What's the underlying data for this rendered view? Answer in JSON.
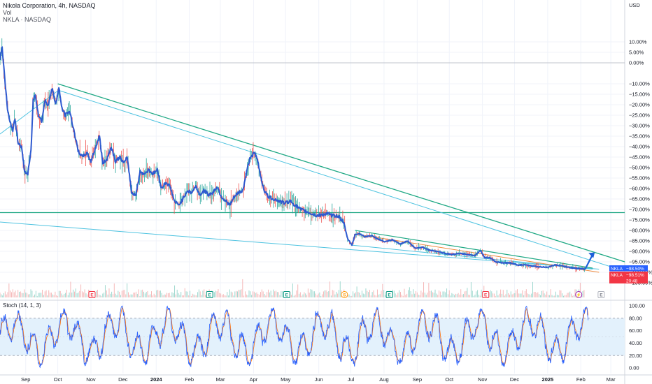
{
  "header": {
    "symbol_line": "Nikola Corporation, 4h, NASDAQ",
    "vol_line": "Vol",
    "compare_line": "NKLA · NASDAQ",
    "currency": "USD"
  },
  "stoch": {
    "label": "Stoch (14, 1, 3)",
    "ticks": [
      "100.00",
      "80.00",
      "60.00",
      "40.00",
      "20.00",
      "0.00"
    ],
    "k_color": "#2962ff",
    "d_color": "#ff6d00"
  },
  "price_tags": {
    "nkla_label": "NKLA",
    "nkla_value": "−98.50%",
    "nkla_color": "#2962ff",
    "last_label": "NKLA",
    "last_value": "−98.51%",
    "last_color": "#f23645",
    "countdown": "20:48"
  },
  "events": [
    {
      "letter": "E",
      "kind": "earnings-red",
      "date": "2023-11-02"
    },
    {
      "letter": "E",
      "kind": "earnings-green",
      "date": "2024-02-20"
    },
    {
      "letter": "E",
      "kind": "earnings-green",
      "date": "2024-05-02"
    },
    {
      "letter": "S",
      "kind": "split",
      "date": "2024-06-25"
    },
    {
      "letter": "E",
      "kind": "earnings-green",
      "date": "2024-08-06"
    },
    {
      "letter": "E",
      "kind": "earnings-red",
      "date": "2024-11-04"
    },
    {
      "letter": "⚡",
      "kind": "news",
      "date": "2025-01-30"
    },
    {
      "letter": "E",
      "kind": "earnings-future",
      "date": "2025-02-20"
    }
  ],
  "colors": {
    "candle_line": "#2e5ad0",
    "trend_dark": "#1fa884",
    "trend_light": "#4fc3e0",
    "wedge_orange": "#ef8a3e",
    "arrow": "#1e5fd9",
    "stoch_band": "#e3f1fc"
  },
  "chart_data": {
    "type": "line",
    "title": "Nikola Corporation, 4h, NASDAQ",
    "ylabel": "USD",
    "y_unit": "% change",
    "ylim": [
      -108,
      18
    ],
    "y_ticks": [
      10,
      5,
      0,
      -10,
      -15,
      -20,
      -25,
      -30,
      -35,
      -40,
      -45,
      -50,
      -55,
      -60,
      -65,
      -70,
      -75,
      -80,
      -85,
      -90,
      -95,
      -100,
      -105
    ],
    "y_tick_labels": [
      "10.00%",
      "5.00%",
      "0.00%",
      "−10.00%",
      "−15.00%",
      "−20.00%",
      "−25.00%",
      "−30.00%",
      "−35.00%",
      "−40.00%",
      "−45.00%",
      "−50.00%",
      "−55.00%",
      "−60.00%",
      "−65.00%",
      "−70.00%",
      "−75.00%",
      "−80.00%",
      "−85.00%",
      "−90.00%",
      "−95.00%",
      "−100.00%",
      "−105.00%"
    ],
    "x_range": [
      "2023-08-08",
      "2025-03-14"
    ],
    "x_ticks": [
      {
        "date": "2023-09-01",
        "label": "Sep",
        "bold": false
      },
      {
        "date": "2023-10-01",
        "label": "Oct",
        "bold": false
      },
      {
        "date": "2023-11-01",
        "label": "Nov",
        "bold": false
      },
      {
        "date": "2023-12-01",
        "label": "Dec",
        "bold": false
      },
      {
        "date": "2024-01-01",
        "label": "2024",
        "bold": true
      },
      {
        "date": "2024-02-01",
        "label": "Feb",
        "bold": false
      },
      {
        "date": "2024-03-01",
        "label": "Mar",
        "bold": false
      },
      {
        "date": "2024-04-01",
        "label": "Apr",
        "bold": false
      },
      {
        "date": "2024-05-01",
        "label": "May",
        "bold": false
      },
      {
        "date": "2024-06-01",
        "label": "Jun",
        "bold": false
      },
      {
        "date": "2024-07-01",
        "label": "Jul",
        "bold": false
      },
      {
        "date": "2024-08-01",
        "label": "Aug",
        "bold": false
      },
      {
        "date": "2024-09-01",
        "label": "Sep",
        "bold": false
      },
      {
        "date": "2024-10-01",
        "label": "Oct",
        "bold": false
      },
      {
        "date": "2024-11-01",
        "label": "Nov",
        "bold": false
      },
      {
        "date": "2024-12-01",
        "label": "Dec",
        "bold": false
      },
      {
        "date": "2025-01-01",
        "label": "2025",
        "bold": true
      },
      {
        "date": "2025-02-01",
        "label": "Feb",
        "bold": false
      },
      {
        "date": "2025-03-01",
        "label": "Mar",
        "bold": false
      }
    ],
    "series": [
      {
        "values": [
          [
            "2023-08-08",
            2
          ],
          [
            "2023-08-10",
            8
          ],
          [
            "2023-08-12",
            -5
          ],
          [
            "2023-08-15",
            -22
          ],
          [
            "2023-08-17",
            -28
          ],
          [
            "2023-08-20",
            -32
          ],
          [
            "2023-08-22",
            -27
          ],
          [
            "2023-08-25",
            -38
          ],
          [
            "2023-08-28",
            -40
          ],
          [
            "2023-08-31",
            -52
          ],
          [
            "2023-09-03",
            -53
          ],
          [
            "2023-09-06",
            -42
          ],
          [
            "2023-09-08",
            -18
          ],
          [
            "2023-09-10",
            -15
          ],
          [
            "2023-09-13",
            -25
          ],
          [
            "2023-09-16",
            -28
          ],
          [
            "2023-09-19",
            -18
          ],
          [
            "2023-09-22",
            -20
          ],
          [
            "2023-09-26",
            -12
          ],
          [
            "2023-09-29",
            -20
          ],
          [
            "2023-10-02",
            -12
          ],
          [
            "2023-10-05",
            -22
          ],
          [
            "2023-10-08",
            -25
          ],
          [
            "2023-10-12",
            -23
          ],
          [
            "2023-10-16",
            -32
          ],
          [
            "2023-10-20",
            -42
          ],
          [
            "2023-10-24",
            -45
          ],
          [
            "2023-10-28",
            -43
          ],
          [
            "2023-11-01",
            -47
          ],
          [
            "2023-11-05",
            -41
          ],
          [
            "2023-11-09",
            -35
          ],
          [
            "2023-11-12",
            -48
          ],
          [
            "2023-11-16",
            -46
          ],
          [
            "2023-11-20",
            -40
          ],
          [
            "2023-11-24",
            -47
          ],
          [
            "2023-11-28",
            -45
          ],
          [
            "2023-12-02",
            -48
          ],
          [
            "2023-12-05",
            -45
          ],
          [
            "2023-12-09",
            -62
          ],
          [
            "2023-12-13",
            -63
          ],
          [
            "2023-12-17",
            -52
          ],
          [
            "2023-12-21",
            -53
          ],
          [
            "2023-12-25",
            -51
          ],
          [
            "2023-12-29",
            -53
          ],
          [
            "2024-01-02",
            -51
          ],
          [
            "2024-01-06",
            -60
          ],
          [
            "2024-01-10",
            -57
          ],
          [
            "2024-01-14",
            -59
          ],
          [
            "2024-01-18",
            -66
          ],
          [
            "2024-01-22",
            -68
          ],
          [
            "2024-01-26",
            -65
          ],
          [
            "2024-01-30",
            -61
          ],
          [
            "2024-02-03",
            -62
          ],
          [
            "2024-02-07",
            -59
          ],
          [
            "2024-02-11",
            -63
          ],
          [
            "2024-02-15",
            -61
          ],
          [
            "2024-02-19",
            -63
          ],
          [
            "2024-02-23",
            -62
          ],
          [
            "2024-02-27",
            -59
          ],
          [
            "2024-03-02",
            -64
          ],
          [
            "2024-03-06",
            -66
          ],
          [
            "2024-03-10",
            -68
          ],
          [
            "2024-03-14",
            -64
          ],
          [
            "2024-03-18",
            -62
          ],
          [
            "2024-03-22",
            -61
          ],
          [
            "2024-03-26",
            -51
          ],
          [
            "2024-03-29",
            -45
          ],
          [
            "2024-04-02",
            -43
          ],
          [
            "2024-04-05",
            -47
          ],
          [
            "2024-04-08",
            -55
          ],
          [
            "2024-04-11",
            -61
          ],
          [
            "2024-04-15",
            -64
          ],
          [
            "2024-04-20",
            -65
          ],
          [
            "2024-04-25",
            -66
          ],
          [
            "2024-04-30",
            -67
          ],
          [
            "2024-05-05",
            -66
          ],
          [
            "2024-05-10",
            -68
          ],
          [
            "2024-05-15",
            -70
          ],
          [
            "2024-05-20",
            -71
          ],
          [
            "2024-05-25",
            -72
          ],
          [
            "2024-05-30",
            -73
          ],
          [
            "2024-06-04",
            -72.5
          ],
          [
            "2024-06-09",
            -72
          ],
          [
            "2024-06-14",
            -73
          ],
          [
            "2024-06-19",
            -73
          ],
          [
            "2024-06-24",
            -76
          ],
          [
            "2024-06-28",
            -84
          ],
          [
            "2024-07-02",
            -87
          ],
          [
            "2024-07-05",
            -82
          ],
          [
            "2024-07-09",
            -81.5
          ],
          [
            "2024-07-14",
            -83
          ],
          [
            "2024-07-20",
            -82.5
          ],
          [
            "2024-07-26",
            -84
          ],
          [
            "2024-08-02",
            -85.5
          ],
          [
            "2024-08-09",
            -84.5
          ],
          [
            "2024-08-16",
            -86.5
          ],
          [
            "2024-08-23",
            -85
          ],
          [
            "2024-08-30",
            -88.5
          ],
          [
            "2024-09-06",
            -88
          ],
          [
            "2024-09-13",
            -89.5
          ],
          [
            "2024-09-20",
            -90
          ],
          [
            "2024-09-27",
            -91
          ],
          [
            "2024-10-04",
            -91.5
          ],
          [
            "2024-10-11",
            -91
          ],
          [
            "2024-10-18",
            -91.5
          ],
          [
            "2024-10-25",
            -92
          ],
          [
            "2024-10-30",
            -89.5
          ],
          [
            "2024-11-03",
            -93
          ],
          [
            "2024-11-08",
            -93
          ],
          [
            "2024-11-13",
            -95
          ],
          [
            "2024-11-20",
            -95.5
          ],
          [
            "2024-11-27",
            -95.5
          ],
          [
            "2024-12-04",
            -96.5
          ],
          [
            "2024-12-11",
            -96.5
          ],
          [
            "2024-12-18",
            -97
          ],
          [
            "2024-12-25",
            -97.5
          ],
          [
            "2025-01-01",
            -97.5
          ],
          [
            "2025-01-08",
            -96.5
          ],
          [
            "2025-01-15",
            -97
          ],
          [
            "2025-01-22",
            -97.8
          ],
          [
            "2025-01-29",
            -98.2
          ],
          [
            "2025-02-05",
            -98.5
          ]
        ]
      }
    ],
    "lines": [
      {
        "name": "horizontal-support",
        "points": [
          [
            "2023-08-08",
            -71.5
          ],
          [
            "2025-03-14",
            -71.5
          ]
        ]
      },
      {
        "name": "upper-trendline",
        "points": [
          [
            "2023-10-01",
            -10
          ],
          [
            "2025-03-14",
            -95
          ]
        ]
      },
      {
        "name": "light-trendline-a",
        "points": [
          [
            "2023-10-01",
            -13
          ],
          [
            "2025-03-05",
            -98
          ]
        ]
      },
      {
        "name": "light-trendline-b",
        "points": [
          [
            "2023-08-08",
            -76
          ],
          [
            "2025-02-18",
            -98.5
          ]
        ]
      },
      {
        "name": "light-trendline-c",
        "points": [
          [
            "2023-08-08",
            -34
          ],
          [
            "2023-10-02",
            -13
          ]
        ]
      },
      {
        "name": "wedge-upper",
        "points": [
          [
            "2024-07-05",
            -80
          ],
          [
            "2025-02-12",
            -98
          ]
        ]
      },
      {
        "name": "wedge-lower",
        "points": [
          [
            "2024-07-01",
            -87
          ],
          [
            "2025-02-12",
            -98.5
          ]
        ]
      },
      {
        "name": "wedge-orange",
        "points": [
          [
            "2024-07-08",
            -82
          ],
          [
            "2025-02-18",
            -100
          ]
        ]
      },
      {
        "name": "breakout-arrow",
        "points": [
          [
            "2025-02-05",
            -98.5
          ],
          [
            "2025-02-14",
            -90.5
          ]
        ]
      }
    ]
  }
}
